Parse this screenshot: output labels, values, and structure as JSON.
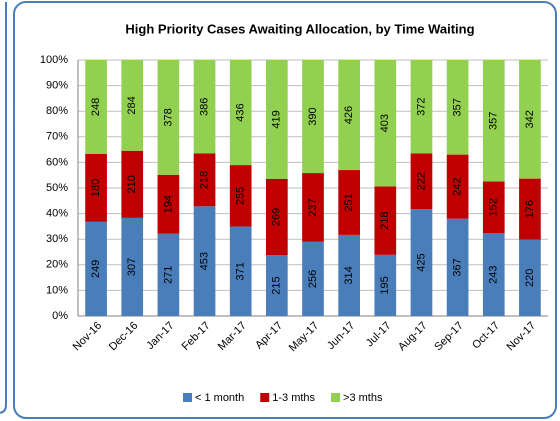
{
  "chart_data": {
    "type": "stacked_bar_100",
    "title": "High Priority Cases Awaiting Allocation, by Time Waiting",
    "categories": [
      "Nov-16",
      "Dec-16",
      "Jan-17",
      "Feb-17",
      "Mar-17",
      "Apr-17",
      "May-17",
      "Jun-17",
      "Jul-17",
      "Aug-17",
      "Sep-17",
      "Oct-17",
      "Nov-17"
    ],
    "series": [
      {
        "name": "< 1 month",
        "color": "#4a7ebb",
        "values": [
          249,
          307,
          271,
          453,
          371,
          215,
          256,
          314,
          195,
          425,
          367,
          243,
          220
        ]
      },
      {
        "name": "1-3 mths",
        "color": "#c00000",
        "values": [
          180,
          210,
          194,
          218,
          255,
          269,
          237,
          251,
          218,
          222,
          242,
          152,
          176
        ]
      },
      {
        "name": ">3 mths",
        "color": "#92d050",
        "values": [
          248,
          284,
          378,
          386,
          436,
          419,
          390,
          426,
          403,
          372,
          357,
          357,
          342
        ]
      }
    ],
    "ylim": [
      0,
      100
    ],
    "yticks": [
      {
        "value": 0,
        "label": "0%"
      },
      {
        "value": 10,
        "label": "10%"
      },
      {
        "value": 20,
        "label": "20%"
      },
      {
        "value": 30,
        "label": "30%"
      },
      {
        "value": 40,
        "label": "40%"
      },
      {
        "value": 50,
        "label": "50%"
      },
      {
        "value": 60,
        "label": "60%"
      },
      {
        "value": 70,
        "label": "70%"
      },
      {
        "value": 80,
        "label": "80%"
      },
      {
        "value": 90,
        "label": "90%"
      },
      {
        "value": 100,
        "label": "100%"
      }
    ],
    "grid": true,
    "legend": "bottom"
  }
}
